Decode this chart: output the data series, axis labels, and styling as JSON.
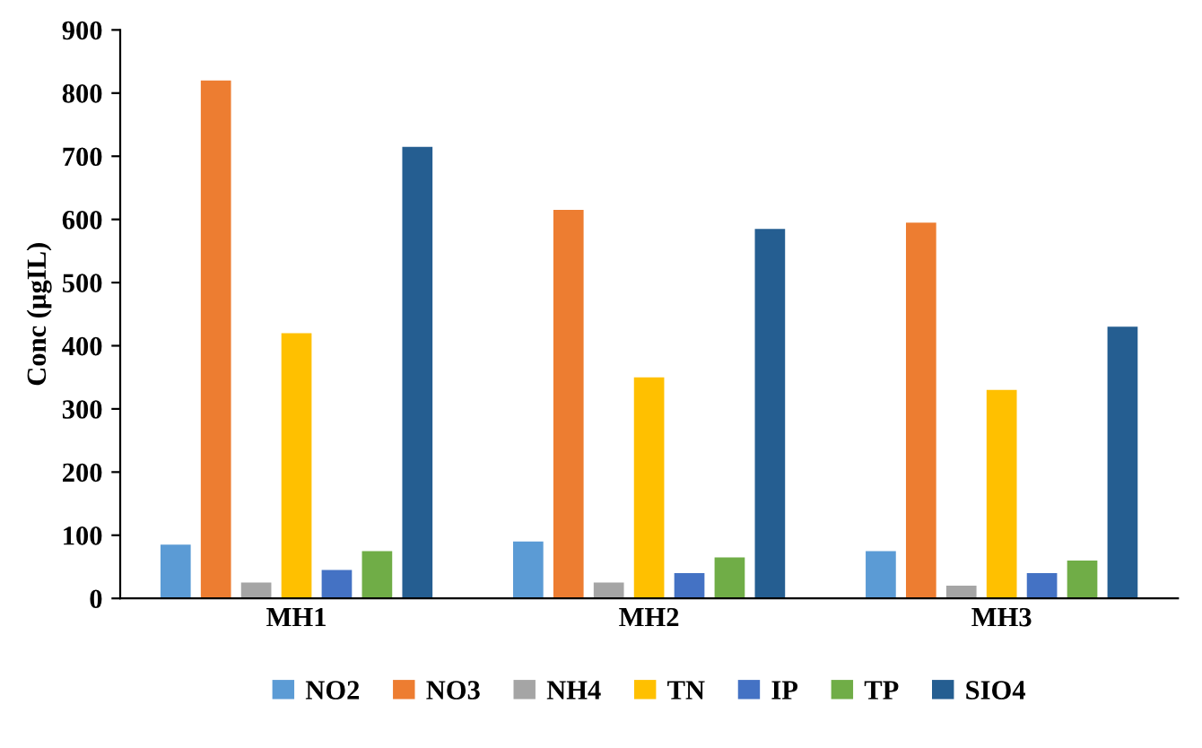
{
  "chart_data": {
    "type": "bar",
    "ylabel": "Conc (µgIL)",
    "categories": [
      "MH1",
      "MH2",
      "MH3"
    ],
    "series": [
      {
        "name": "NO2",
        "color": "#5b9bd5",
        "values": [
          85,
          90,
          75
        ]
      },
      {
        "name": "NO3",
        "color": "#ed7d31",
        "values": [
          820,
          615,
          595
        ]
      },
      {
        "name": "NH4",
        "color": "#a5a5a5",
        "values": [
          25,
          25,
          20
        ]
      },
      {
        "name": "TN",
        "color": "#ffc000",
        "values": [
          420,
          350,
          330
        ]
      },
      {
        "name": "IP",
        "color": "#4472c4",
        "values": [
          45,
          40,
          40
        ]
      },
      {
        "name": "TP",
        "color": "#70ad47",
        "values": [
          75,
          65,
          60
        ]
      },
      {
        "name": "SIO4",
        "color": "#255e91",
        "values": [
          715,
          585,
          430
        ]
      }
    ],
    "ylim": [
      0,
      900
    ],
    "yticks": [
      0,
      100,
      200,
      300,
      400,
      500,
      600,
      700,
      800,
      900
    ],
    "grid": false,
    "legend": "bottom"
  }
}
